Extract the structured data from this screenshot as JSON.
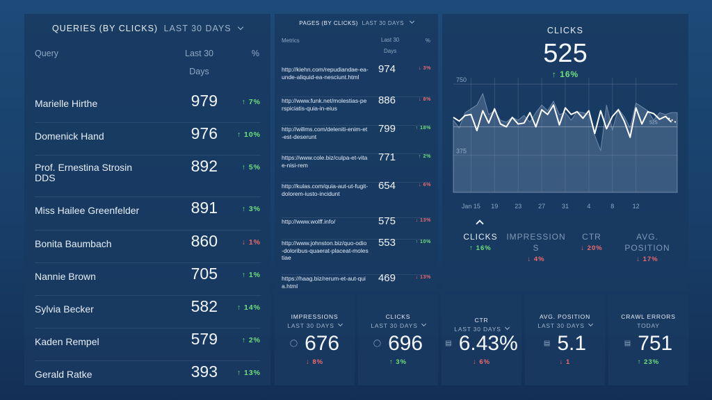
{
  "queries": {
    "title": "QUERIES (BY CLICKS)",
    "period": "LAST 30 DAYS",
    "headers": {
      "query": "Query",
      "clicks": "Last 30",
      "clicks2": "Days",
      "pct": "%"
    },
    "rows": [
      {
        "name": "Marielle Hirthe",
        "value": "979",
        "change": "↑ 7%",
        "dir": "up"
      },
      {
        "name": "Domenick Hand",
        "value": "976",
        "change": "↑ 10%",
        "dir": "up"
      },
      {
        "name": "Prof. Ernestina Strosin DDS",
        "value": "892",
        "change": "↑ 5%",
        "dir": "up"
      },
      {
        "name": "Miss Hailee Greenfelder",
        "value": "891",
        "change": "↑ 3%",
        "dir": "up"
      },
      {
        "name": "Bonita Baumbach",
        "value": "860",
        "change": "↓ 1%",
        "dir": "down"
      },
      {
        "name": "Nannie Brown",
        "value": "705",
        "change": "↑ 1%",
        "dir": "up"
      },
      {
        "name": "Sylvia Becker",
        "value": "582",
        "change": "↑ 14%",
        "dir": "up"
      },
      {
        "name": "Kaden Rempel",
        "value": "579",
        "change": "↑ 2%",
        "dir": "up"
      },
      {
        "name": "Gerald Ratke",
        "value": "393",
        "change": "↑ 13%",
        "dir": "up"
      }
    ]
  },
  "pages": {
    "title": "PAGES (BY CLICKS)",
    "period": "LAST 30 DAYS",
    "headers": {
      "metrics": "Metrics",
      "clicks": "Last 30",
      "clicks2": "Days",
      "pct": "%"
    },
    "rows": [
      {
        "url": "http://kiehn.com/repudiandae-ea-unde-aliquid-ea-nesciunt.html",
        "value": "974",
        "change": "↓ 3%",
        "dir": "down"
      },
      {
        "url": "http://www.funk.net/molestias-perspiciatis-quia-in-eius",
        "value": "886",
        "change": "↓ 8%",
        "dir": "down"
      },
      {
        "url": "http://willms.com/deleniti-enim-et-est-deserunt",
        "value": "799",
        "change": "↑ 18%",
        "dir": "up"
      },
      {
        "url": "https://www.cole.biz/culpa-et-vitae-nisi-rem",
        "value": "771",
        "change": "↑ 2%",
        "dir": "up"
      },
      {
        "url": "http://kulas.com/quia-aut-ut-fugit-dolorem-iusto-incidunt",
        "value": "654",
        "change": "↓ 6%",
        "dir": "down"
      },
      {
        "url": "http://www.wolff.info/",
        "value": "575",
        "change": "↓ 13%",
        "dir": "down"
      },
      {
        "url": "http://www.johnston.biz/quo-odio-doloribus-quaerat-placeat-molestiae",
        "value": "553",
        "change": "↑ 10%",
        "dir": "up"
      },
      {
        "url": "https://haag.biz/rerum-et-aut-quia.html",
        "value": "469",
        "change": "↓ 13%",
        "dir": "down"
      }
    ]
  },
  "clicks_widget": {
    "title": "CLICKS",
    "value": "525",
    "change": "↑ 16%",
    "tabs": [
      {
        "label": "CLICKS",
        "change": "↑ 16%",
        "dir": "up"
      },
      {
        "label": "IMPRESSION S",
        "change": "↓ 4%",
        "dir": "down"
      },
      {
        "label": "CTR",
        "change": "↓ 20%",
        "dir": "down"
      },
      {
        "label": "AVG. POSITION",
        "change": "↓ 17%",
        "dir": "down"
      }
    ]
  },
  "chart_data": {
    "type": "line",
    "title": "CLICKS",
    "y_ticks": [
      375,
      750
    ],
    "ylim": [
      180,
      820
    ],
    "x_tick_labels": [
      "Jan 15",
      "19",
      "23",
      "27",
      "31",
      "4",
      "8",
      "12"
    ],
    "x_tick_index": [
      3,
      7,
      11,
      15,
      19,
      23,
      27,
      31
    ],
    "series": [
      {
        "name": "current",
        "values": [
          575,
          555,
          585,
          590,
          505,
          610,
          545,
          620,
          540,
          525,
          575,
          540,
          545,
          600,
          525,
          615,
          590,
          640,
          535,
          625,
          590,
          605,
          570,
          610,
          490,
          610,
          515,
          580,
          615,
          555,
          470,
          625,
          540,
          605,
          595,
          565,
          580,
          550,
          545
        ]
      },
      {
        "name": "previous",
        "values": [
          560,
          520,
          600,
          620,
          640,
          700,
          590,
          610,
          560,
          550,
          575,
          560,
          585,
          550,
          600,
          640,
          610,
          660,
          590,
          600,
          560,
          605,
          600,
          590,
          480,
          400,
          640,
          510,
          620,
          580,
          520,
          650,
          630,
          610,
          560,
          600,
          590,
          600,
          600
        ]
      }
    ],
    "reference_label": "525"
  },
  "cards": [
    {
      "title": "IMPRESSIONS",
      "period": "LAST 30 DAYS",
      "value": "676",
      "icon": "user-icon",
      "change": "↓ 8%",
      "dir": "down"
    },
    {
      "title": "CLICKS",
      "period": "LAST 30 DAYS",
      "value": "696",
      "icon": "user-icon",
      "change": "↑ 3%",
      "dir": "up"
    },
    {
      "title": "CTR",
      "period": "LAST 30 DAYS",
      "value": "6.43%",
      "icon": "briefcase-icon",
      "change": "↓ 6%",
      "dir": "down"
    },
    {
      "title": "AVG. POSITION",
      "period": "LAST 30 DAYS",
      "value": "5.1",
      "icon": "briefcase-icon",
      "change": "↓ 1",
      "dir": "down"
    },
    {
      "title": "CRAWL ERRORS",
      "period": "TODAY",
      "value": "751",
      "icon": "briefcase-icon",
      "change": "↑ 23%",
      "dir": "up"
    }
  ]
}
